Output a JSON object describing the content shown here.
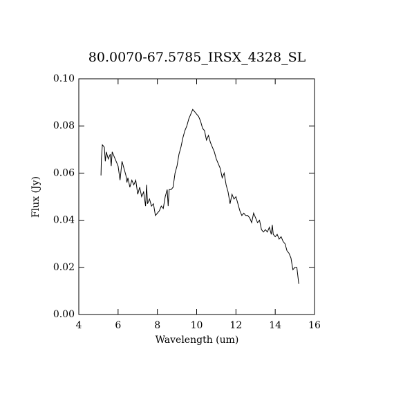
{
  "chart_data": {
    "type": "line",
    "title": "80.0070-67.5785_IRSX_4328_SL",
    "x_label": "Wavelength (um)",
    "y_label": "Flux (Jy)",
    "color": "#000000",
    "x": [
      5.13,
      5.15,
      5.2,
      5.3,
      5.35,
      5.4,
      5.5,
      5.6,
      5.65,
      5.7,
      5.8,
      5.9,
      6.0,
      6.1,
      6.2,
      6.3,
      6.4,
      6.45,
      6.5,
      6.6,
      6.7,
      6.8,
      6.9,
      7.0,
      7.1,
      7.2,
      7.3,
      7.4,
      7.45,
      7.5,
      7.6,
      7.7,
      7.8,
      7.9,
      8.0,
      8.1,
      8.2,
      8.3,
      8.4,
      8.5,
      8.55,
      8.6,
      8.7,
      8.8,
      8.9,
      9.0,
      9.1,
      9.2,
      9.3,
      9.4,
      9.5,
      9.6,
      9.7,
      9.8,
      9.9,
      10.0,
      10.1,
      10.2,
      10.3,
      10.4,
      10.5,
      10.6,
      10.7,
      10.8,
      10.9,
      11.0,
      11.1,
      11.2,
      11.3,
      11.4,
      11.5,
      11.6,
      11.7,
      11.8,
      11.9,
      12.0,
      12.1,
      12.2,
      12.3,
      12.4,
      12.5,
      12.6,
      12.7,
      12.8,
      12.9,
      13.0,
      13.1,
      13.2,
      13.3,
      13.4,
      13.5,
      13.6,
      13.7,
      13.8,
      13.85,
      13.9,
      14.0,
      14.1,
      14.2,
      14.3,
      14.4,
      14.5,
      14.6,
      14.7,
      14.8,
      14.9,
      15.0,
      15.1,
      15.2
    ],
    "values": [
      0.059,
      0.066,
      0.072,
      0.071,
      0.065,
      0.069,
      0.066,
      0.068,
      0.063,
      0.069,
      0.067,
      0.065,
      0.063,
      0.057,
      0.065,
      0.062,
      0.059,
      0.056,
      0.058,
      0.054,
      0.057,
      0.055,
      0.057,
      0.051,
      0.054,
      0.05,
      0.052,
      0.046,
      0.055,
      0.047,
      0.049,
      0.046,
      0.047,
      0.042,
      0.043,
      0.044,
      0.046,
      0.045,
      0.05,
      0.053,
      0.046,
      0.053,
      0.053,
      0.054,
      0.06,
      0.063,
      0.068,
      0.071,
      0.075,
      0.078,
      0.08,
      0.083,
      0.085,
      0.087,
      0.086,
      0.085,
      0.084,
      0.082,
      0.079,
      0.078,
      0.074,
      0.076,
      0.073,
      0.071,
      0.069,
      0.066,
      0.064,
      0.062,
      0.058,
      0.06,
      0.055,
      0.052,
      0.047,
      0.051,
      0.049,
      0.05,
      0.047,
      0.044,
      0.042,
      0.043,
      0.042,
      0.042,
      0.041,
      0.039,
      0.043,
      0.041,
      0.039,
      0.04,
      0.036,
      0.035,
      0.036,
      0.035,
      0.037,
      0.034,
      0.038,
      0.034,
      0.033,
      0.034,
      0.032,
      0.033,
      0.031,
      0.03,
      0.027,
      0.026,
      0.024,
      0.019,
      0.02,
      0.02,
      0.013
    ],
    "xlim": [
      4,
      16
    ],
    "xticks": [
      4,
      6,
      8,
      10,
      12,
      14,
      16
    ],
    "ylim": [
      0,
      0.1
    ],
    "yticks": [
      {
        "value": 0,
        "label": "0.00"
      },
      {
        "value": 0.02,
        "label": "0.02"
      },
      {
        "value": 0.04,
        "label": "0.04"
      },
      {
        "value": 0.06,
        "label": "0.06"
      },
      {
        "value": 0.08,
        "label": "0.08"
      },
      {
        "value": 0.1,
        "label": "0.10"
      }
    ]
  }
}
